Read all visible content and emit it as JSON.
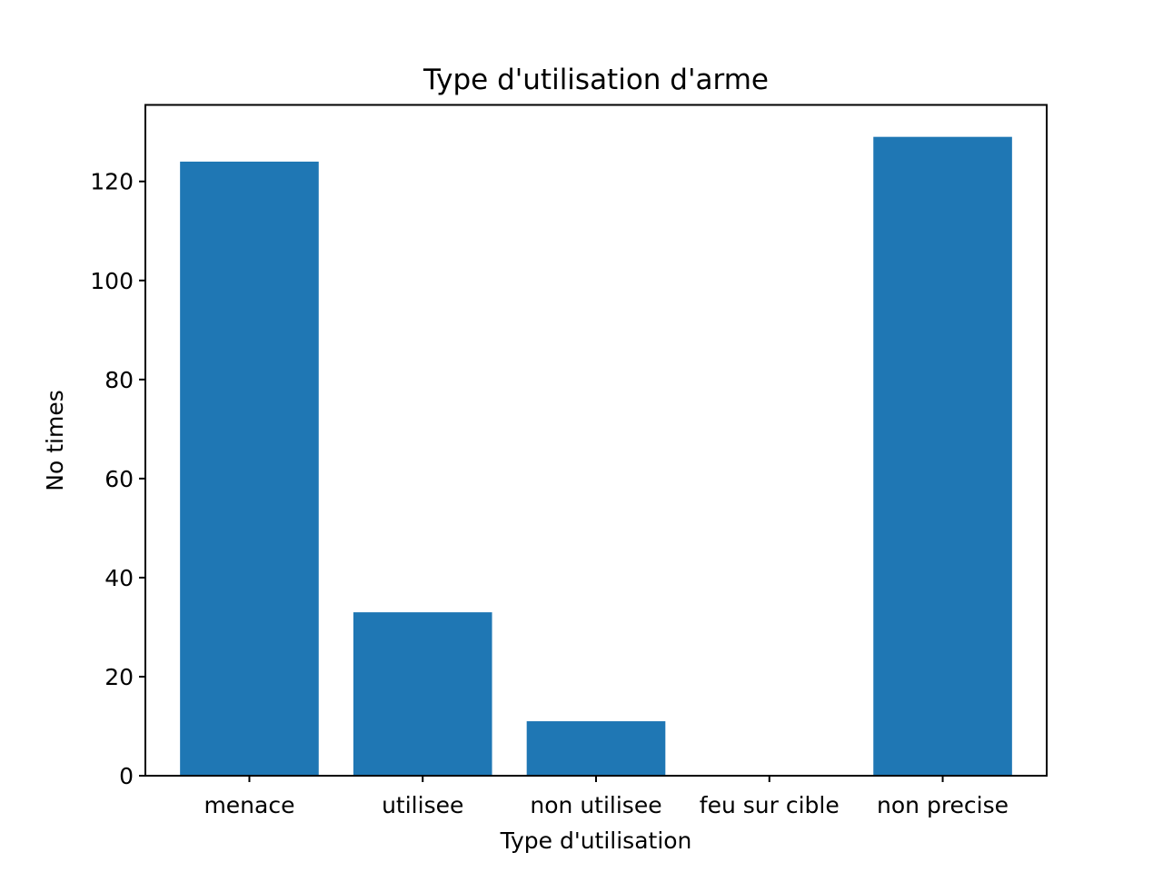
{
  "chart_data": {
    "type": "bar",
    "title": "Type d'utilisation d'arme",
    "xlabel": "Type d'utilisation",
    "ylabel": "No times",
    "categories": [
      "menace",
      "utilisee",
      "non utilisee",
      "feu sur cible",
      "non precise"
    ],
    "values": [
      124,
      33,
      11,
      0,
      129
    ],
    "ylim": [
      0,
      135.45
    ],
    "yticks": [
      0,
      20,
      40,
      60,
      80,
      100,
      120
    ],
    "grid": false,
    "legend": "none",
    "bar_color": "#1f77b4"
  }
}
